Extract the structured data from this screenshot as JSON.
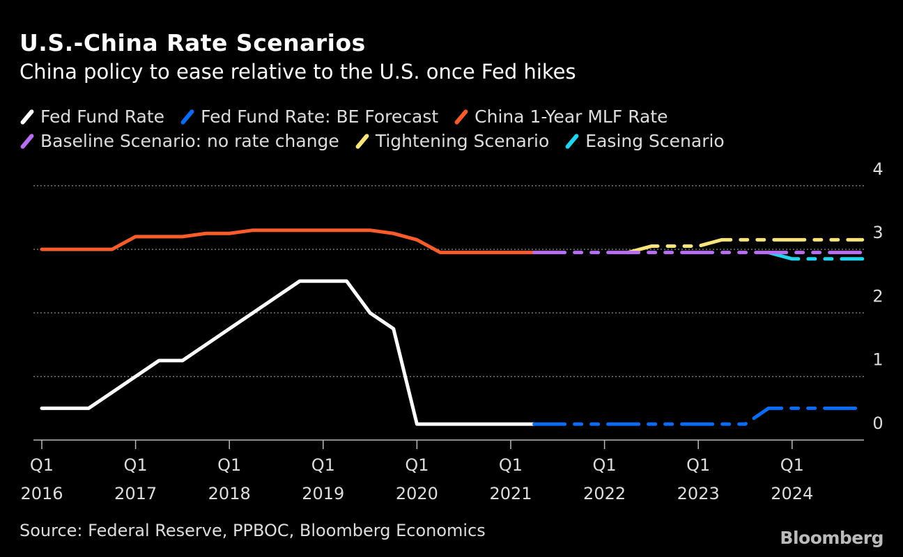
{
  "chart_data": {
    "type": "line",
    "title": "U.S.-China Rate Scenarios",
    "subtitle": "China policy to ease relative to the U.S. once Fed hikes",
    "source": "Source: Federal Reserve, PPBOC, Bloomberg Economics",
    "logo": "Bloomberg",
    "xlim": [
      2016.0,
      2024.75
    ],
    "ylim": [
      0,
      4
    ],
    "y_ticks": [
      "0",
      "1",
      "2",
      "3",
      "4"
    ],
    "x_ticks": [
      {
        "value": 2016,
        "q": "Q1",
        "year": "2016"
      },
      {
        "value": 2017,
        "q": "Q1",
        "year": "2017"
      },
      {
        "value": 2018,
        "q": "Q1",
        "year": "2018"
      },
      {
        "value": 2019,
        "q": "Q1",
        "year": "2019"
      },
      {
        "value": 2020,
        "q": "Q1",
        "year": "2020"
      },
      {
        "value": 2021,
        "q": "Q1",
        "year": "2021"
      },
      {
        "value": 2022,
        "q": "Q1",
        "year": "2022"
      },
      {
        "value": 2023,
        "q": "Q1",
        "year": "2023"
      },
      {
        "value": 2024,
        "q": "Q1",
        "year": "2024"
      }
    ],
    "grid": true,
    "legend_position": "top-left",
    "series": [
      {
        "name": "Fed Fund Rate",
        "color": "#ffffff",
        "dashed": false,
        "x": [
          2016.0,
          2016.5,
          2016.75,
          2017.0,
          2017.25,
          2017.5,
          2017.75,
          2018.0,
          2018.25,
          2018.5,
          2018.75,
          2019.25,
          2019.5,
          2019.75,
          2020.0,
          2021.25
        ],
        "y": [
          0.5,
          0.5,
          0.75,
          1.0,
          1.25,
          1.25,
          1.5,
          1.75,
          2.0,
          2.25,
          2.5,
          2.5,
          2.0,
          1.75,
          0.25,
          0.25
        ]
      },
      {
        "name": "Fed Fund Rate: BE Forecast",
        "color": "#0a6cf5",
        "dashed": true,
        "x": [
          2021.25,
          2023.5,
          2023.75,
          2024.75
        ],
        "y": [
          0.25,
          0.25,
          0.5,
          0.5
        ]
      },
      {
        "name": "China 1-Year MLF Rate",
        "color": "#f95c2b",
        "dashed": false,
        "x": [
          2016.0,
          2016.75,
          2017.0,
          2017.5,
          2017.75,
          2018.0,
          2018.25,
          2019.5,
          2019.75,
          2020.0,
          2020.25,
          2021.25
        ],
        "y": [
          3.0,
          3.0,
          3.2,
          3.2,
          3.25,
          3.25,
          3.3,
          3.3,
          3.25,
          3.15,
          2.95,
          2.95
        ]
      },
      {
        "name": "Tightening Scenario",
        "color": "#f8e47a",
        "dashed": true,
        "x": [
          2022.25,
          2022.5,
          2023.0,
          2023.25,
          2024.75
        ],
        "y": [
          2.95,
          3.05,
          3.05,
          3.15,
          3.15
        ]
      },
      {
        "name": "Easing Scenario",
        "color": "#22d3ee",
        "dashed": true,
        "x": [
          2023.75,
          2024.0,
          2024.75
        ],
        "y": [
          2.95,
          2.85,
          2.85
        ]
      },
      {
        "name": "Baseline Scenario: no rate change",
        "color": "#b86ef0",
        "dashed": true,
        "x": [
          2021.25,
          2024.75
        ],
        "y": [
          2.95,
          2.95
        ]
      }
    ],
    "legend": [
      [
        {
          "name": "Fed Fund Rate",
          "color": "#ffffff"
        },
        {
          "name": "Fed Fund Rate: BE Forecast",
          "color": "#0a6cf5"
        },
        {
          "name": "China 1-Year MLF Rate",
          "color": "#f95c2b"
        }
      ],
      [
        {
          "name": "Baseline Scenario: no rate change",
          "color": "#b86ef0"
        },
        {
          "name": "Tightening Scenario",
          "color": "#f8e47a"
        },
        {
          "name": "Easing Scenario",
          "color": "#22d3ee"
        }
      ]
    ]
  }
}
